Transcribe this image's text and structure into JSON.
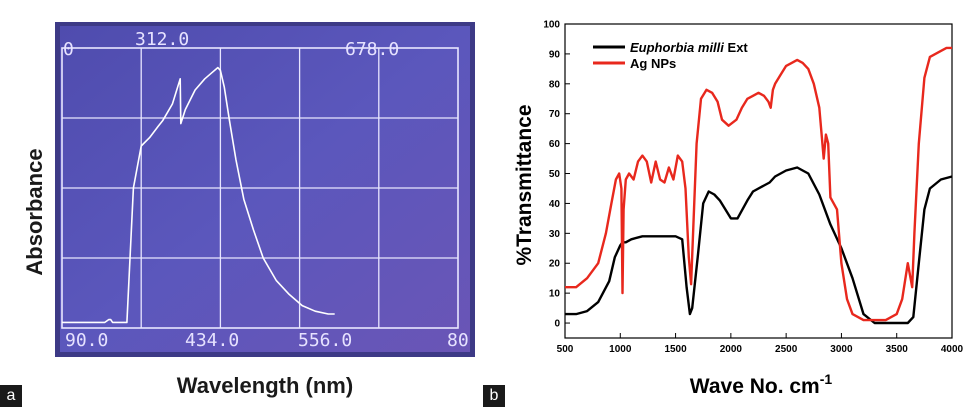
{
  "panel_labels": {
    "a": "a",
    "b": "b"
  },
  "colors": {
    "screen_bg": "#5a56b8",
    "screen_trace": "#ffffff",
    "ext_series": "#000000",
    "np_series": "#e8281d"
  },
  "chart_data": [
    {
      "type": "line",
      "ylabel": "Absorbance",
      "xlabel": "Wavelength (nm)",
      "top_tick_labels": [
        "312.0",
        "678.0"
      ],
      "top_left_fragment": "0",
      "bottom_tick_labels": [
        "90.0",
        "434.0",
        "556.0"
      ],
      "bottom_right_fragment": "80",
      "xlim": [
        190,
        800
      ],
      "ylim": [
        0,
        1
      ],
      "grid": true,
      "x": [
        190,
        256,
        262,
        265,
        268,
        270,
        274,
        277,
        282,
        290,
        300,
        312,
        325,
        338,
        345,
        360,
        372,
        373,
        380,
        395,
        410,
        420,
        430,
        434,
        440,
        448,
        458,
        470,
        485,
        500,
        520,
        540,
        560,
        580,
        600,
        610
      ],
      "y": [
        0.02,
        0.02,
        0.03,
        0.03,
        0.02,
        0.02,
        0.02,
        0.02,
        0.02,
        0.02,
        0.5,
        0.65,
        0.68,
        0.72,
        0.74,
        0.8,
        0.89,
        0.73,
        0.78,
        0.85,
        0.89,
        0.91,
        0.93,
        0.92,
        0.86,
        0.74,
        0.6,
        0.46,
        0.35,
        0.25,
        0.17,
        0.12,
        0.08,
        0.06,
        0.05,
        0.05
      ]
    },
    {
      "type": "line",
      "xlabel_main": "Wave No. cm",
      "xlabel_sup": "-1",
      "ylabel": "%Transmittance",
      "xlim": [
        500,
        4000
      ],
      "ylim": [
        -5,
        100
      ],
      "xticks": [
        500,
        1000,
        1500,
        2000,
        2500,
        3000,
        3500,
        4000
      ],
      "yticks": [
        0,
        10,
        20,
        30,
        40,
        50,
        60,
        70,
        80,
        90,
        100
      ],
      "grid": false,
      "legend_position": "top-left",
      "series": [
        {
          "name": "Euphorbia milli Ext",
          "name_italic": "Euphorbia milli",
          "name_rest": " Ext",
          "color": "#000000",
          "x": [
            500,
            600,
            700,
            800,
            900,
            950,
            1000,
            1020,
            1050,
            1100,
            1200,
            1300,
            1400,
            1500,
            1560,
            1600,
            1630,
            1650,
            1700,
            1750,
            1800,
            1850,
            1900,
            2000,
            2060,
            2150,
            2200,
            2300,
            2350,
            2400,
            2500,
            2600,
            2650,
            2700,
            2800,
            2900,
            3000,
            3100,
            3200,
            3300,
            3400,
            3500,
            3600,
            3650,
            3700,
            3750,
            3800,
            3900,
            4000
          ],
          "y": [
            3,
            3,
            4,
            7,
            14,
            22,
            26,
            27,
            27,
            28,
            29,
            29,
            29,
            29,
            28,
            12,
            3,
            5,
            22,
            40,
            44,
            43,
            41,
            35,
            35,
            41,
            44,
            46,
            47,
            49,
            51,
            52,
            51,
            50,
            43,
            33,
            25,
            15,
            3,
            0,
            0,
            0,
            0,
            2,
            20,
            38,
            45,
            48,
            49
          ]
        },
        {
          "name": "Ag NPs",
          "color": "#e8281d",
          "x": [
            500,
            600,
            700,
            800,
            870,
            920,
            960,
            990,
            1010,
            1020,
            1030,
            1050,
            1080,
            1120,
            1160,
            1200,
            1240,
            1280,
            1320,
            1360,
            1400,
            1440,
            1480,
            1520,
            1560,
            1590,
            1620,
            1640,
            1660,
            1690,
            1730,
            1780,
            1830,
            1880,
            1920,
            1980,
            2050,
            2100,
            2150,
            2200,
            2250,
            2300,
            2340,
            2360,
            2380,
            2400,
            2450,
            2500,
            2550,
            2600,
            2650,
            2700,
            2750,
            2800,
            2840,
            2860,
            2880,
            2900,
            2930,
            2960,
            3000,
            3050,
            3100,
            3150,
            3200,
            3300,
            3400,
            3500,
            3550,
            3600,
            3640,
            3660,
            3700,
            3750,
            3800,
            3850,
            3900,
            3950,
            4000
          ],
          "y": [
            12,
            12,
            15,
            20,
            30,
            40,
            48,
            50,
            45,
            10,
            38,
            48,
            50,
            48,
            54,
            56,
            54,
            47,
            54,
            48,
            47,
            52,
            48,
            56,
            54,
            45,
            22,
            13,
            32,
            60,
            75,
            78,
            77,
            74,
            68,
            66,
            68,
            72,
            75,
            76,
            77,
            76,
            74,
            72,
            78,
            80,
            83,
            86,
            87,
            88,
            87,
            85,
            80,
            72,
            55,
            63,
            60,
            42,
            40,
            38,
            20,
            8,
            3,
            2,
            1,
            1,
            1,
            3,
            8,
            20,
            12,
            30,
            60,
            82,
            89,
            90,
            91,
            92,
            92
          ]
        }
      ]
    }
  ]
}
